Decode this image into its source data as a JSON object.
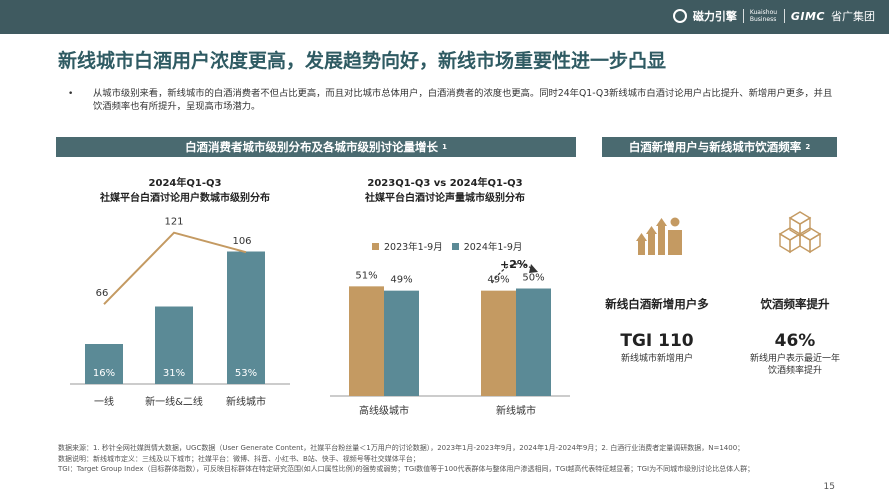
{
  "header": {
    "logo1": "磁力引擎",
    "logo2": "Kuaishou Business",
    "logo3": "GIMC",
    "logo4": "省广集团"
  },
  "title": "新线城市白酒用户浓度更高，发展趋势向好，新线市场重要性进一步凸显",
  "bullet": "从城市级别来看，新线城市的白酒消费者不但占比更高，而且对比城市总体用户，白酒消费者的浓度也更高。同时24年Q1-Q3新线城市白酒讨论用户占比提升、新增用户更多，并且饮酒频率也有所提升，呈现高市场潜力。",
  "left_section": {
    "label": "白酒消费者城市级别分布及各城市级别讨论量增长",
    "sup": "1"
  },
  "right_section": {
    "label": "白酒新增用户与新线城市饮酒频率",
    "sup": "2"
  },
  "colors": {
    "teal": "#4a6a70",
    "bar_blue": "#5b8a96",
    "bar_orange": "#c49a62",
    "line": "#c49a62",
    "accent": "#2f5b63"
  },
  "chart_data": [
    {
      "type": "bar",
      "title": "2024年Q1-Q3",
      "subtitle": "社媒平台白酒讨论用户数城市级别分布",
      "categories": [
        "一线",
        "新一线&二线",
        "新线城市"
      ],
      "values": [
        16,
        31,
        53
      ],
      "value_labels": [
        "16%",
        "31%",
        "53%"
      ],
      "overlay_line": {
        "values": [
          66,
          121,
          106
        ],
        "labels": [
          "66",
          "121",
          "106"
        ]
      }
    },
    {
      "type": "bar",
      "title": "2023Q1-Q3 vs 2024年Q1-Q3",
      "subtitle": "社媒平台白酒讨论声量城市级别分布",
      "categories": [
        "高线级城市",
        "新线城市"
      ],
      "series": [
        {
          "name": "2023年1-9月",
          "values": [
            51,
            49
          ],
          "labels": [
            "51%",
            "49%"
          ]
        },
        {
          "name": "2024年1-9月",
          "values": [
            49,
            50
          ],
          "labels": [
            "49%",
            "50%"
          ]
        }
      ],
      "annotation": "+2%"
    }
  ],
  "right_panel": {
    "item1": {
      "label": "新线白酒新增用户多",
      "value": "TGI 110",
      "desc": "新线城市新增用户"
    },
    "item2": {
      "label": "饮酒频率提升",
      "value": "46%",
      "desc1": "新线用户表示最近一年",
      "desc2": "饮酒频率提升"
    }
  },
  "footnotes": [
    "数据来源：1. 秒针全网社媒舆情大数据，UGC数据（User Generate Content，社媒平台粉丝量＜1万用户的讨论数据），2023年1月-2023年9月，2024年1月-2024年9月；2. 白酒行业消费者定量调研数据，N=1400；",
    "数据说明：新线城市定义：三线及以下城市；社媒平台：微博、抖音、小红书、B站、快手、视频号等社交媒体平台；",
    "TGI：Target Group Index（目标群体指数），可反映目标群体在特定研究范围(如人口属性比例)的强势或弱势；TGI数值等于100代表群体与整体用户渗透相同，TGI越高代表特征越显著；TGI为不同城市级别讨论比总体人群；"
  ],
  "page_number": "15"
}
